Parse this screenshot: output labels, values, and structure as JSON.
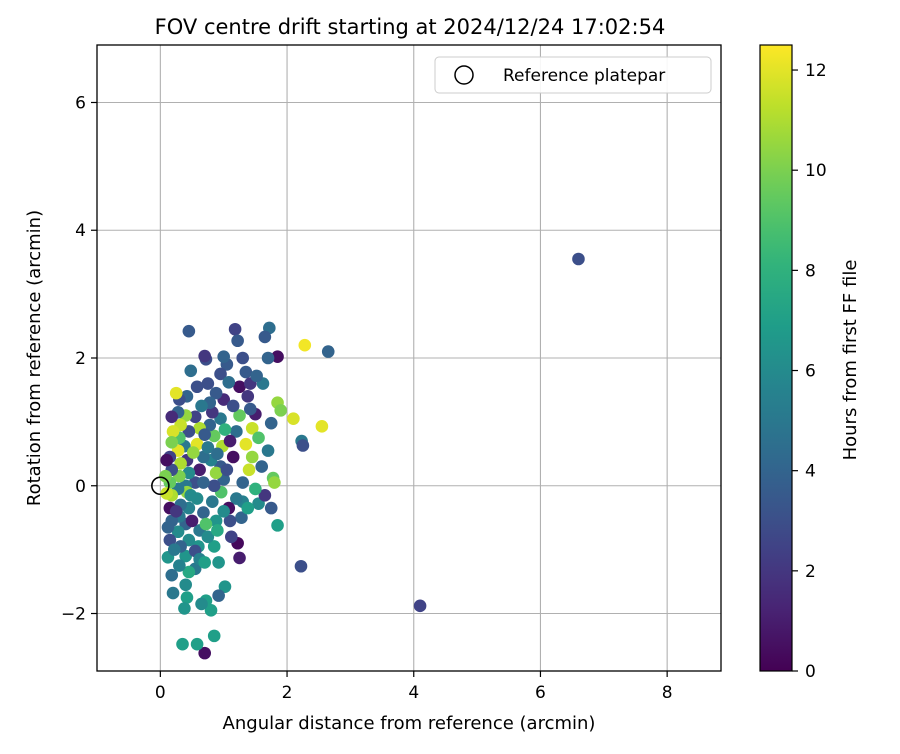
{
  "chart_data": {
    "type": "scatter",
    "title": "FOV centre drift starting at 2024/12/24 17:02:54",
    "xlabel": "Angular distance from reference (arcmin)",
    "ylabel": "Rotation from reference (arcmin)",
    "xlim": [
      -1.0,
      8.85
    ],
    "ylim": [
      -2.9,
      6.9
    ],
    "xticks": [
      0,
      2,
      4,
      6,
      8
    ],
    "xtick_labels": [
      "0",
      "2",
      "4",
      "6",
      "8"
    ],
    "yticks": [
      -2,
      0,
      2,
      4,
      6
    ],
    "ytick_labels": [
      "−2",
      "0",
      "2",
      "4",
      "6"
    ],
    "grid": true,
    "legend": {
      "placement": "top-right",
      "entries": [
        "Reference platepar"
      ]
    },
    "reference_point": {
      "name": "Reference platepar",
      "x": 0.0,
      "y": 0.0
    },
    "colorbar": {
      "label": "Hours from first FF file",
      "colormap": "viridis",
      "range": [
        0,
        12.5
      ],
      "ticks": [
        0,
        2,
        4,
        6,
        8,
        10,
        12
      ],
      "tick_labels": [
        "0",
        "2",
        "4",
        "6",
        "8",
        "10",
        "12"
      ]
    },
    "points": [
      {
        "x": 6.6,
        "y": 3.55,
        "c": 3.0
      },
      {
        "x": 4.1,
        "y": -1.88,
        "c": 2.5
      },
      {
        "x": 2.65,
        "y": 2.1,
        "c": 4.0
      },
      {
        "x": 2.55,
        "y": 0.93,
        "c": 12.0
      },
      {
        "x": 2.28,
        "y": 2.2,
        "c": 12.3
      },
      {
        "x": 2.23,
        "y": 0.7,
        "c": 5.0
      },
      {
        "x": 2.25,
        "y": 0.63,
        "c": 3.0
      },
      {
        "x": 2.22,
        "y": -1.26,
        "c": 3.0
      },
      {
        "x": 2.1,
        "y": 1.05,
        "c": 11.8
      },
      {
        "x": 1.85,
        "y": 2.02,
        "c": 0.5
      },
      {
        "x": 1.72,
        "y": 2.47,
        "c": 4.5
      },
      {
        "x": 1.65,
        "y": 2.33,
        "c": 3.5
      },
      {
        "x": 1.7,
        "y": 2.0,
        "c": 4.0
      },
      {
        "x": 1.62,
        "y": 1.6,
        "c": 5.0
      },
      {
        "x": 1.85,
        "y": 1.3,
        "c": 10.5
      },
      {
        "x": 1.9,
        "y": 1.18,
        "c": 10.0
      },
      {
        "x": 1.75,
        "y": 0.98,
        "c": 4.0
      },
      {
        "x": 1.7,
        "y": 0.55,
        "c": 5.0
      },
      {
        "x": 1.78,
        "y": 0.12,
        "c": 9.5
      },
      {
        "x": 1.8,
        "y": 0.05,
        "c": 10.5
      },
      {
        "x": 1.75,
        "y": -0.35,
        "c": 3.5
      },
      {
        "x": 1.85,
        "y": -0.62,
        "c": 7.0
      },
      {
        "x": 1.55,
        "y": -0.28,
        "c": 6.0
      },
      {
        "x": 1.65,
        "y": -0.15,
        "c": 2.0
      },
      {
        "x": 1.5,
        "y": 1.12,
        "c": 1.0
      },
      {
        "x": 1.45,
        "y": 0.9,
        "c": 11.5
      },
      {
        "x": 1.55,
        "y": 0.75,
        "c": 9.0
      },
      {
        "x": 1.35,
        "y": 0.65,
        "c": 12.0
      },
      {
        "x": 1.4,
        "y": 0.25,
        "c": 11.5
      },
      {
        "x": 1.3,
        "y": 0.05,
        "c": 4.0
      },
      {
        "x": 1.3,
        "y": -0.25,
        "c": 5.5
      },
      {
        "x": 1.28,
        "y": -0.5,
        "c": 4.0
      },
      {
        "x": 1.3,
        "y": 2.0,
        "c": 3.0
      },
      {
        "x": 1.18,
        "y": 2.45,
        "c": 2.5
      },
      {
        "x": 1.22,
        "y": 2.27,
        "c": 3.5
      },
      {
        "x": 1.35,
        "y": 1.78,
        "c": 3.5
      },
      {
        "x": 1.25,
        "y": 1.55,
        "c": 0.5
      },
      {
        "x": 1.38,
        "y": 1.4,
        "c": 2.0
      },
      {
        "x": 1.42,
        "y": 1.2,
        "c": 3.5
      },
      {
        "x": 1.25,
        "y": 1.1,
        "c": 9.5
      },
      {
        "x": 1.2,
        "y": 0.85,
        "c": 4.5
      },
      {
        "x": 1.15,
        "y": 0.45,
        "c": 0.5
      },
      {
        "x": 1.2,
        "y": -0.2,
        "c": 5.0
      },
      {
        "x": 1.22,
        "y": -0.9,
        "c": 0.3
      },
      {
        "x": 1.25,
        "y": -1.13,
        "c": 1.0
      },
      {
        "x": 1.1,
        "y": -0.55,
        "c": 3.0
      },
      {
        "x": 1.08,
        "y": -0.35,
        "c": 0.5
      },
      {
        "x": 1.12,
        "y": -0.8,
        "c": 2.5
      },
      {
        "x": 1.05,
        "y": 1.9,
        "c": 3.5
      },
      {
        "x": 1.0,
        "y": 2.02,
        "c": 4.0
      },
      {
        "x": 0.95,
        "y": 1.75,
        "c": 3.0
      },
      {
        "x": 1.08,
        "y": 1.62,
        "c": 4.5
      },
      {
        "x": 1.0,
        "y": 1.35,
        "c": 1.5
      },
      {
        "x": 0.95,
        "y": 1.05,
        "c": 5.0
      },
      {
        "x": 1.02,
        "y": 0.88,
        "c": 8.0
      },
      {
        "x": 0.98,
        "y": 0.62,
        "c": 11.0
      },
      {
        "x": 0.95,
        "y": 0.3,
        "c": 3.5
      },
      {
        "x": 1.0,
        "y": 0.1,
        "c": 4.0
      },
      {
        "x": 0.96,
        "y": -0.1,
        "c": 9.0
      },
      {
        "x": 1.0,
        "y": -0.4,
        "c": 6.0
      },
      {
        "x": 1.02,
        "y": -1.58,
        "c": 6.5
      },
      {
        "x": 0.92,
        "y": -1.72,
        "c": 4.0
      },
      {
        "x": 0.85,
        "y": -0.95,
        "c": 7.0
      },
      {
        "x": 0.88,
        "y": -0.55,
        "c": 6.5
      },
      {
        "x": 0.82,
        "y": -0.25,
        "c": 5.0
      },
      {
        "x": 0.85,
        "y": 0.0,
        "c": 3.0
      },
      {
        "x": 0.88,
        "y": 0.2,
        "c": 10.5
      },
      {
        "x": 0.8,
        "y": 0.4,
        "c": 5.5
      },
      {
        "x": 0.85,
        "y": 0.78,
        "c": 9.5
      },
      {
        "x": 0.78,
        "y": 0.95,
        "c": 4.0
      },
      {
        "x": 0.82,
        "y": 1.15,
        "c": 2.0
      },
      {
        "x": 0.88,
        "y": 1.45,
        "c": 3.5
      },
      {
        "x": 0.75,
        "y": 1.6,
        "c": 3.0
      },
      {
        "x": 0.72,
        "y": 1.98,
        "c": 3.0
      },
      {
        "x": 0.7,
        "y": 2.03,
        "c": 2.0
      },
      {
        "x": 0.78,
        "y": 1.3,
        "c": 4.0
      },
      {
        "x": 0.8,
        "y": -1.95,
        "c": 7.0
      },
      {
        "x": 0.85,
        "y": -2.35,
        "c": 7.0
      },
      {
        "x": 0.72,
        "y": -1.8,
        "c": 7.0
      },
      {
        "x": 0.7,
        "y": -2.62,
        "c": 0.5
      },
      {
        "x": 0.65,
        "y": -1.85,
        "c": 6.0
      },
      {
        "x": 0.58,
        "y": -2.48,
        "c": 7.0
      },
      {
        "x": 0.55,
        "y": -1.3,
        "c": 5.0
      },
      {
        "x": 0.6,
        "y": -0.95,
        "c": 6.5
      },
      {
        "x": 0.62,
        "y": -0.7,
        "c": 5.0
      },
      {
        "x": 0.68,
        "y": -0.42,
        "c": 4.0
      },
      {
        "x": 0.58,
        "y": -0.2,
        "c": 6.0
      },
      {
        "x": 0.55,
        "y": 0.05,
        "c": 3.0
      },
      {
        "x": 0.62,
        "y": 0.25,
        "c": 1.0
      },
      {
        "x": 0.68,
        "y": 0.45,
        "c": 4.5
      },
      {
        "x": 0.58,
        "y": 0.65,
        "c": 12.0
      },
      {
        "x": 0.62,
        "y": 0.9,
        "c": 11.0
      },
      {
        "x": 0.55,
        "y": 1.08,
        "c": 2.5
      },
      {
        "x": 0.65,
        "y": 1.25,
        "c": 5.0
      },
      {
        "x": 0.58,
        "y": 1.55,
        "c": 3.0
      },
      {
        "x": 0.45,
        "y": 2.42,
        "c": 3.5
      },
      {
        "x": 0.48,
        "y": 1.8,
        "c": 4.5
      },
      {
        "x": 0.42,
        "y": 1.4,
        "c": 4.0
      },
      {
        "x": 0.4,
        "y": 1.1,
        "c": 10.5
      },
      {
        "x": 0.45,
        "y": 0.85,
        "c": 3.0
      },
      {
        "x": 0.38,
        "y": 0.62,
        "c": 5.0
      },
      {
        "x": 0.42,
        "y": 0.4,
        "c": 2.0
      },
      {
        "x": 0.45,
        "y": 0.2,
        "c": 6.0
      },
      {
        "x": 0.4,
        "y": 0.0,
        "c": 5.0
      },
      {
        "x": 0.42,
        "y": -0.1,
        "c": 10.5
      },
      {
        "x": 0.45,
        "y": -0.35,
        "c": 5.5
      },
      {
        "x": 0.4,
        "y": -0.6,
        "c": 4.0
      },
      {
        "x": 0.45,
        "y": -0.85,
        "c": 6.0
      },
      {
        "x": 0.4,
        "y": -1.1,
        "c": 6.5
      },
      {
        "x": 0.45,
        "y": -1.35,
        "c": 7.5
      },
      {
        "x": 0.4,
        "y": -1.55,
        "c": 6.0
      },
      {
        "x": 0.42,
        "y": -1.75,
        "c": 7.0
      },
      {
        "x": 0.38,
        "y": -1.92,
        "c": 6.5
      },
      {
        "x": 0.35,
        "y": -2.48,
        "c": 7.0
      },
      {
        "x": 0.3,
        "y": -1.25,
        "c": 5.5
      },
      {
        "x": 0.32,
        "y": -0.95,
        "c": 4.0
      },
      {
        "x": 0.28,
        "y": -0.72,
        "c": 6.0
      },
      {
        "x": 0.3,
        "y": -0.48,
        "c": 5.0
      },
      {
        "x": 0.32,
        "y": -0.3,
        "c": 4.5
      },
      {
        "x": 0.28,
        "y": -0.05,
        "c": 5.0
      },
      {
        "x": 0.3,
        "y": 0.15,
        "c": 10.0
      },
      {
        "x": 0.32,
        "y": 0.35,
        "c": 11.0
      },
      {
        "x": 0.28,
        "y": 0.55,
        "c": 12.0
      },
      {
        "x": 0.3,
        "y": 0.75,
        "c": 9.0
      },
      {
        "x": 0.32,
        "y": 0.95,
        "c": 11.5
      },
      {
        "x": 0.28,
        "y": 1.15,
        "c": 4.0
      },
      {
        "x": 0.3,
        "y": 1.35,
        "c": 3.0
      },
      {
        "x": 0.25,
        "y": 1.45,
        "c": 12.0
      },
      {
        "x": 0.18,
        "y": 1.08,
        "c": 1.5
      },
      {
        "x": 0.2,
        "y": 0.85,
        "c": 11.8
      },
      {
        "x": 0.18,
        "y": 0.68,
        "c": 10.0
      },
      {
        "x": 0.15,
        "y": 0.45,
        "c": 2.5
      },
      {
        "x": 0.18,
        "y": 0.25,
        "c": 3.0
      },
      {
        "x": 0.15,
        "y": 0.05,
        "c": 9.5
      },
      {
        "x": 0.18,
        "y": -0.15,
        "c": 11.0
      },
      {
        "x": 0.15,
        "y": -0.35,
        "c": 0.5
      },
      {
        "x": 0.18,
        "y": -0.55,
        "c": 4.0
      },
      {
        "x": 0.12,
        "y": -0.65,
        "c": 4.0
      },
      {
        "x": 0.15,
        "y": -0.85,
        "c": 3.0
      },
      {
        "x": 0.12,
        "y": -1.12,
        "c": 6.5
      },
      {
        "x": 0.18,
        "y": -1.4,
        "c": 4.5
      },
      {
        "x": 0.2,
        "y": -1.68,
        "c": 5.0
      },
      {
        "x": 0.1,
        "y": 0.4,
        "c": 0.5
      },
      {
        "x": 0.08,
        "y": 0.15,
        "c": 10.0
      },
      {
        "x": 0.1,
        "y": -0.12,
        "c": 11.5
      },
      {
        "x": 0.55,
        "y": -1.02,
        "c": 3.0
      },
      {
        "x": 0.62,
        "y": -1.15,
        "c": 5.5
      },
      {
        "x": 0.7,
        "y": -1.2,
        "c": 7.0
      },
      {
        "x": 0.75,
        "y": -0.8,
        "c": 6.0
      },
      {
        "x": 0.72,
        "y": -0.6,
        "c": 9.0
      },
      {
        "x": 0.9,
        "y": -0.7,
        "c": 7.5
      },
      {
        "x": 0.92,
        "y": -1.2,
        "c": 6.5
      },
      {
        "x": 0.68,
        "y": 0.05,
        "c": 4.0
      },
      {
        "x": 0.75,
        "y": 0.6,
        "c": 5.0
      },
      {
        "x": 0.7,
        "y": 0.8,
        "c": 3.5
      },
      {
        "x": 0.9,
        "y": 0.5,
        "c": 4.5
      },
      {
        "x": 1.05,
        "y": 0.25,
        "c": 3.0
      },
      {
        "x": 1.1,
        "y": 0.7,
        "c": 1.0
      },
      {
        "x": 1.15,
        "y": 1.25,
        "c": 3.0
      },
      {
        "x": 1.45,
        "y": 0.45,
        "c": 10.5
      },
      {
        "x": 1.5,
        "y": -0.05,
        "c": 8.0
      },
      {
        "x": 1.38,
        "y": -0.35,
        "c": 7.0
      },
      {
        "x": 1.6,
        "y": 0.3,
        "c": 4.0
      },
      {
        "x": 1.42,
        "y": 1.6,
        "c": 2.0
      },
      {
        "x": 1.52,
        "y": 1.72,
        "c": 4.0
      },
      {
        "x": 0.5,
        "y": -0.55,
        "c": 1.0
      },
      {
        "x": 0.48,
        "y": -0.15,
        "c": 6.0
      },
      {
        "x": 0.52,
        "y": 0.52,
        "c": 10.5
      },
      {
        "x": 0.25,
        "y": -0.4,
        "c": 2.0
      },
      {
        "x": 0.22,
        "y": -1.0,
        "c": 5.0
      }
    ]
  }
}
